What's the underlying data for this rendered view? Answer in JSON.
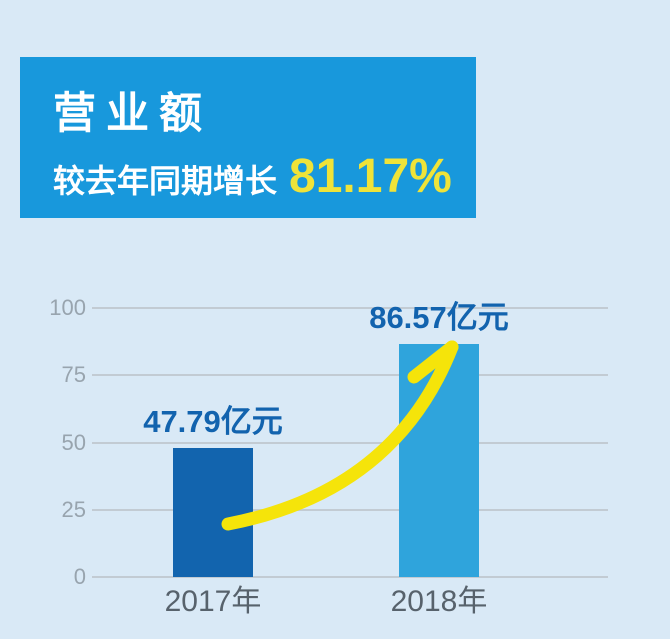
{
  "header": {
    "title": "营业额",
    "subtitle_prefix": "较去年同期增长",
    "growth_value": "81.17%",
    "bg_color": "#1898dc",
    "accent_color": "#efe339"
  },
  "chart_data": {
    "type": "bar",
    "title": "营业额",
    "categories": [
      "2017年",
      "2018年"
    ],
    "values": [
      47.79,
      86.57
    ],
    "unit": "亿元",
    "value_labels": [
      "47.79亿元",
      "86.57亿元"
    ],
    "yticks": [
      0,
      25,
      50,
      75,
      100
    ],
    "ylim": [
      0,
      100
    ],
    "xlabel": "",
    "ylabel": "",
    "grid": true,
    "legend": "none",
    "bar_colors": [
      "#1264ae",
      "#2fa4dc"
    ],
    "annotation": "yellow-growth-arrow",
    "annotation_color": "#f5e40a"
  },
  "colors": {
    "background": "#d9e9f6",
    "gridline": "#c2cbd3",
    "ytick_text": "#98a4ae",
    "xtick_text": "#57626c",
    "value_label_text": "#1263ae"
  }
}
